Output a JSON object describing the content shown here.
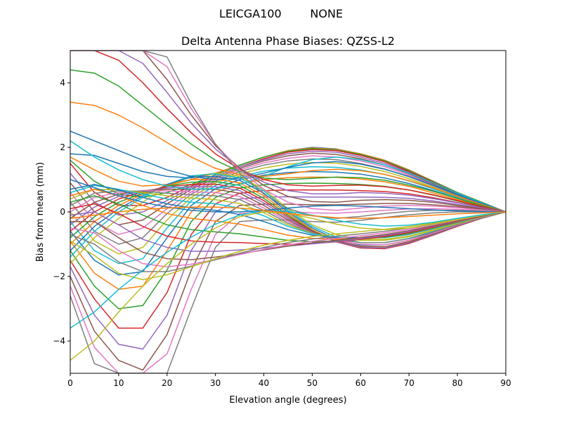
{
  "chart_data": {
    "type": "line",
    "suptitle": "LEICGA100        NONE",
    "title": "Delta Antenna Phase Biases: QZSS-L2",
    "xlabel": "Elevation angle (degrees)",
    "ylabel": "Bias from mean (mm)",
    "xlim": [
      0,
      90
    ],
    "ylim": [
      -5,
      5
    ],
    "xticks": [
      0,
      10,
      20,
      30,
      40,
      50,
      60,
      70,
      80,
      90
    ],
    "yticks": [
      -4,
      -2,
      0,
      2,
      4
    ],
    "grid": false,
    "legend": "none",
    "colors": [
      "#1f77b4",
      "#ff7f0e",
      "#2ca02c",
      "#d62728",
      "#9467bd",
      "#8c564b",
      "#e377c2",
      "#7f7f7f",
      "#bcbd22",
      "#17becf"
    ],
    "x": [
      0,
      5,
      10,
      15,
      20,
      25,
      30,
      35,
      40,
      45,
      50,
      55,
      60,
      65,
      70,
      75,
      80,
      85,
      90
    ],
    "series": [
      {
        "values": [
          1.8,
          1.75,
          1.5,
          1.25,
          1.1,
          1.05,
          1.2,
          1.45,
          1.7,
          1.9,
          2.0,
          1.95,
          1.8,
          1.6,
          1.3,
          0.95,
          0.6,
          0.3,
          0.0
        ]
      },
      {
        "values": [
          1.7,
          1.3,
          0.95,
          0.8,
          0.85,
          1.0,
          1.2,
          1.45,
          1.7,
          1.9,
          1.98,
          1.94,
          1.8,
          1.6,
          1.3,
          0.95,
          0.6,
          0.3,
          0.0
        ]
      },
      {
        "values": [
          1.6,
          0.95,
          0.55,
          0.45,
          0.6,
          0.85,
          1.15,
          1.45,
          1.7,
          1.88,
          1.96,
          1.92,
          1.78,
          1.58,
          1.28,
          0.94,
          0.6,
          0.3,
          0.0
        ]
      },
      {
        "values": [
          1.5,
          0.6,
          0.2,
          0.2,
          0.45,
          0.8,
          1.1,
          1.4,
          1.65,
          1.85,
          1.93,
          1.9,
          1.75,
          1.55,
          1.25,
          0.92,
          0.58,
          0.28,
          0.0
        ]
      },
      {
        "values": [
          1.2,
          0.3,
          -0.1,
          0.0,
          0.35,
          0.75,
          1.1,
          1.4,
          1.62,
          1.8,
          1.88,
          1.85,
          1.7,
          1.5,
          1.22,
          0.9,
          0.57,
          0.27,
          0.0
        ]
      },
      {
        "values": [
          0.9,
          0.0,
          -0.4,
          -0.25,
          0.25,
          0.7,
          1.05,
          1.35,
          1.58,
          1.74,
          1.82,
          1.78,
          1.65,
          1.45,
          1.18,
          0.87,
          0.55,
          0.26,
          0.0
        ]
      },
      {
        "values": [
          0.6,
          -0.3,
          -0.7,
          -0.5,
          0.1,
          0.62,
          1.0,
          1.3,
          1.52,
          1.66,
          1.74,
          1.7,
          1.58,
          1.4,
          1.14,
          0.84,
          0.53,
          0.25,
          0.0
        ]
      },
      {
        "values": [
          0.3,
          -0.6,
          -1.0,
          -0.8,
          -0.05,
          0.55,
          0.95,
          1.25,
          1.45,
          1.58,
          1.64,
          1.62,
          1.5,
          1.33,
          1.09,
          0.8,
          0.51,
          0.24,
          0.0
        ]
      },
      {
        "values": [
          0.0,
          -0.9,
          -1.3,
          -1.1,
          -0.25,
          0.45,
          0.9,
          1.18,
          1.36,
          1.48,
          1.53,
          1.51,
          1.41,
          1.25,
          1.03,
          0.76,
          0.48,
          0.23,
          0.0
        ]
      },
      {
        "values": [
          -0.3,
          -1.2,
          -1.6,
          -1.45,
          -0.5,
          0.35,
          0.82,
          1.1,
          1.26,
          1.36,
          1.4,
          1.38,
          1.3,
          1.16,
          0.96,
          0.71,
          0.45,
          0.22,
          0.0
        ]
      },
      {
        "values": [
          -0.6,
          -1.5,
          -1.95,
          -1.85,
          -0.8,
          0.2,
          0.72,
          1.0,
          1.14,
          1.22,
          1.25,
          1.23,
          1.17,
          1.05,
          0.88,
          0.66,
          0.42,
          0.2,
          0.0
        ]
      },
      {
        "values": [
          -0.9,
          -1.9,
          -2.4,
          -2.3,
          -1.2,
          0.0,
          0.6,
          0.88,
          1.0,
          1.06,
          1.08,
          1.07,
          1.02,
          0.93,
          0.79,
          0.59,
          0.38,
          0.18,
          0.0
        ]
      },
      {
        "values": [
          -1.2,
          -2.3,
          -3.0,
          -2.9,
          -1.8,
          -0.3,
          0.45,
          0.74,
          0.84,
          0.88,
          0.89,
          0.88,
          0.85,
          0.79,
          0.68,
          0.52,
          0.34,
          0.16,
          0.0
        ]
      },
      {
        "values": [
          -1.5,
          -2.7,
          -3.6,
          -3.6,
          -2.5,
          -0.7,
          0.25,
          0.58,
          0.66,
          0.68,
          0.68,
          0.68,
          0.66,
          0.63,
          0.56,
          0.44,
          0.29,
          0.14,
          0.0
        ]
      },
      {
        "values": [
          -1.7,
          -3.2,
          -4.1,
          -4.25,
          -3.2,
          -1.2,
          0.0,
          0.4,
          0.46,
          0.47,
          0.46,
          0.46,
          0.46,
          0.45,
          0.42,
          0.34,
          0.23,
          0.11,
          0.0
        ]
      },
      {
        "values": [
          -2.0,
          -3.7,
          -4.6,
          -4.9,
          -3.8,
          -1.8,
          -0.3,
          0.2,
          0.24,
          0.24,
          0.22,
          0.22,
          0.24,
          0.26,
          0.26,
          0.22,
          0.16,
          0.08,
          0.0
        ]
      },
      {
        "values": [
          -2.3,
          -4.2,
          -5.0,
          -5.0,
          -4.4,
          -2.4,
          -0.7,
          -0.05,
          0.0,
          0.0,
          -0.03,
          -0.04,
          0.0,
          0.05,
          0.09,
          0.1,
          0.08,
          0.04,
          0.0
        ]
      },
      {
        "values": [
          -2.6,
          -4.7,
          -5.0,
          -5.0,
          -5.0,
          -3.0,
          -1.1,
          -0.3,
          -0.25,
          -0.25,
          -0.3,
          -0.32,
          -0.26,
          -0.17,
          -0.09,
          -0.03,
          0.0,
          0.0,
          0.0
        ]
      },
      {
        "values": [
          -1.6,
          -0.8,
          -0.2,
          0.3,
          0.8,
          1.1,
          1.2,
          1.1,
          0.7,
          0.1,
          -0.4,
          -0.7,
          -0.85,
          -0.85,
          -0.75,
          -0.55,
          -0.35,
          -0.15,
          0.0
        ]
      },
      {
        "values": [
          -1.4,
          -0.6,
          0.0,
          0.45,
          0.85,
          1.12,
          1.18,
          1.05,
          0.65,
          0.05,
          -0.45,
          -0.78,
          -0.95,
          -0.95,
          -0.82,
          -0.6,
          -0.38,
          -0.17,
          0.0
        ]
      },
      {
        "values": [
          -1.2,
          -0.45,
          0.1,
          0.5,
          0.85,
          1.08,
          1.1,
          0.98,
          0.58,
          0.0,
          -0.5,
          -0.85,
          -1.02,
          -1.02,
          -0.88,
          -0.64,
          -0.4,
          -0.18,
          0.0
        ]
      },
      {
        "values": [
          -1.0,
          -0.3,
          0.2,
          0.55,
          0.82,
          1.0,
          1.02,
          0.9,
          0.5,
          -0.05,
          -0.55,
          -0.9,
          -1.08,
          -1.08,
          -0.92,
          -0.67,
          -0.42,
          -0.19,
          0.0
        ]
      },
      {
        "values": [
          -0.8,
          -0.15,
          0.3,
          0.58,
          0.8,
          0.92,
          0.94,
          0.82,
          0.42,
          -0.1,
          -0.58,
          -0.92,
          -1.1,
          -1.12,
          -0.96,
          -0.7,
          -0.44,
          -0.2,
          0.0
        ]
      },
      {
        "values": [
          -0.6,
          0.0,
          0.4,
          0.62,
          0.78,
          0.85,
          0.86,
          0.74,
          0.35,
          -0.15,
          -0.6,
          -0.93,
          -1.12,
          -1.14,
          -0.98,
          -0.72,
          -0.45,
          -0.2,
          0.0
        ]
      },
      {
        "values": [
          -0.4,
          0.15,
          0.48,
          0.65,
          0.74,
          0.78,
          0.78,
          0.66,
          0.28,
          -0.2,
          -0.62,
          -0.92,
          -1.1,
          -1.12,
          -0.96,
          -0.71,
          -0.44,
          -0.2,
          0.0
        ]
      },
      {
        "values": [
          -0.2,
          0.3,
          0.55,
          0.66,
          0.7,
          0.7,
          0.7,
          0.58,
          0.2,
          -0.25,
          -0.64,
          -0.9,
          -1.06,
          -1.08,
          -0.93,
          -0.69,
          -0.43,
          -0.19,
          0.0
        ]
      },
      {
        "values": [
          0.0,
          0.45,
          0.6,
          0.66,
          0.65,
          0.62,
          0.6,
          0.48,
          0.12,
          -0.3,
          -0.65,
          -0.88,
          -1.0,
          -1.02,
          -0.88,
          -0.66,
          -0.41,
          -0.18,
          0.0
        ]
      },
      {
        "values": [
          0.2,
          0.58,
          0.65,
          0.64,
          0.58,
          0.53,
          0.5,
          0.38,
          0.05,
          -0.35,
          -0.66,
          -0.85,
          -0.95,
          -0.95,
          -0.83,
          -0.62,
          -0.39,
          -0.17,
          0.0
        ]
      },
      {
        "values": [
          0.4,
          0.7,
          0.68,
          0.6,
          0.5,
          0.43,
          0.38,
          0.26,
          -0.03,
          -0.4,
          -0.67,
          -0.82,
          -0.88,
          -0.88,
          -0.77,
          -0.57,
          -0.36,
          -0.16,
          0.0
        ]
      },
      {
        "values": [
          0.6,
          0.82,
          0.7,
          0.55,
          0.4,
          0.3,
          0.25,
          0.12,
          -0.12,
          -0.45,
          -0.68,
          -0.78,
          -0.8,
          -0.8,
          -0.7,
          -0.52,
          -0.33,
          -0.15,
          0.0
        ]
      },
      {
        "values": [
          0.7,
          0.85,
          0.68,
          0.45,
          0.25,
          0.12,
          0.05,
          -0.08,
          -0.3,
          -0.55,
          -0.72,
          -0.8,
          -0.8,
          -0.78,
          -0.68,
          -0.5,
          -0.32,
          -0.14,
          0.0
        ]
      },
      {
        "values": [
          0.5,
          0.7,
          0.5,
          0.2,
          -0.05,
          -0.2,
          -0.28,
          -0.38,
          -0.55,
          -0.72,
          -0.82,
          -0.85,
          -0.82,
          -0.78,
          -0.67,
          -0.49,
          -0.31,
          -0.14,
          0.0
        ]
      },
      {
        "values": [
          0.3,
          0.5,
          0.25,
          -0.1,
          -0.4,
          -0.55,
          -0.62,
          -0.68,
          -0.78,
          -0.88,
          -0.92,
          -0.9,
          -0.84,
          -0.78,
          -0.66,
          -0.48,
          -0.3,
          -0.13,
          0.0
        ]
      },
      {
        "values": [
          0.1,
          0.25,
          -0.05,
          -0.45,
          -0.75,
          -0.9,
          -0.94,
          -0.95,
          -0.98,
          -1.0,
          -0.98,
          -0.93,
          -0.85,
          -0.76,
          -0.64,
          -0.47,
          -0.29,
          -0.13,
          0.0
        ]
      },
      {
        "values": [
          -0.1,
          0.0,
          -0.4,
          -0.85,
          -1.1,
          -1.22,
          -1.22,
          -1.18,
          -1.12,
          -1.06,
          -0.99,
          -0.92,
          -0.83,
          -0.73,
          -0.61,
          -0.45,
          -0.28,
          -0.12,
          0.0
        ]
      },
      {
        "values": [
          -0.3,
          -0.3,
          -0.8,
          -1.25,
          -1.45,
          -1.48,
          -1.4,
          -1.3,
          -1.18,
          -1.06,
          -0.96,
          -0.88,
          -0.79,
          -0.7,
          -0.58,
          -0.43,
          -0.27,
          -0.12,
          0.0
        ]
      },
      {
        "values": [
          -0.5,
          -0.65,
          -1.2,
          -1.6,
          -1.7,
          -1.62,
          -1.48,
          -1.32,
          -1.16,
          -1.02,
          -0.91,
          -0.82,
          -0.74,
          -0.65,
          -0.54,
          -0.4,
          -0.25,
          -0.11,
          0.0
        ]
      },
      {
        "values": [
          -0.7,
          -1.0,
          -1.55,
          -1.85,
          -1.85,
          -1.68,
          -1.48,
          -1.28,
          -1.1,
          -0.95,
          -0.84,
          -0.75,
          -0.68,
          -0.6,
          -0.5,
          -0.37,
          -0.23,
          -0.1,
          0.0
        ]
      },
      {
        "values": [
          -0.9,
          -1.35,
          -1.9,
          -2.1,
          -1.95,
          -1.7,
          -1.45,
          -1.22,
          -1.03,
          -0.88,
          -0.76,
          -0.68,
          -0.61,
          -0.54,
          -0.45,
          -0.34,
          -0.21,
          -0.09,
          0.0
        ]
      },
      {
        "values": [
          2.2,
          1.7,
          1.3,
          1.0,
          0.8,
          0.7,
          0.72,
          0.85,
          1.1,
          1.4,
          1.62,
          1.7,
          1.62,
          1.45,
          1.2,
          0.9,
          0.58,
          0.28,
          0.0
        ]
      },
      {
        "values": [
          2.5,
          2.2,
          1.9,
          1.6,
          1.3,
          1.1,
          1.0,
          1.05,
          1.2,
          1.38,
          1.52,
          1.56,
          1.48,
          1.32,
          1.1,
          0.83,
          0.54,
          0.26,
          0.0
        ]
      },
      {
        "values": [
          3.4,
          3.3,
          3.0,
          2.6,
          2.15,
          1.7,
          1.35,
          1.15,
          1.1,
          1.18,
          1.28,
          1.32,
          1.28,
          1.16,
          0.97,
          0.74,
          0.48,
          0.23,
          0.0
        ]
      },
      {
        "values": [
          4.4,
          4.3,
          3.9,
          3.3,
          2.7,
          2.1,
          1.6,
          1.25,
          1.05,
          1.0,
          1.04,
          1.08,
          1.06,
          0.98,
          0.83,
          0.64,
          0.42,
          0.2,
          0.0
        ]
      },
      {
        "values": [
          5.0,
          5.0,
          4.7,
          4.0,
          3.2,
          2.45,
          1.8,
          1.32,
          1.0,
          0.84,
          0.8,
          0.82,
          0.83,
          0.78,
          0.68,
          0.53,
          0.35,
          0.17,
          0.0
        ]
      },
      {
        "values": [
          5.0,
          5.0,
          5.0,
          4.6,
          3.7,
          2.75,
          1.95,
          1.35,
          0.92,
          0.66,
          0.56,
          0.56,
          0.6,
          0.58,
          0.52,
          0.41,
          0.28,
          0.13,
          0.0
        ]
      },
      {
        "values": [
          5.0,
          5.0,
          5.0,
          5.0,
          4.1,
          3.0,
          2.05,
          1.35,
          0.82,
          0.48,
          0.32,
          0.3,
          0.36,
          0.38,
          0.36,
          0.3,
          0.2,
          0.1,
          0.0
        ]
      },
      {
        "values": [
          5.0,
          5.0,
          5.0,
          5.0,
          4.5,
          3.2,
          2.1,
          1.3,
          0.7,
          0.3,
          0.1,
          0.05,
          0.12,
          0.18,
          0.2,
          0.18,
          0.13,
          0.06,
          0.0
        ]
      },
      {
        "values": [
          5.0,
          5.0,
          5.0,
          5.0,
          4.8,
          3.35,
          2.1,
          1.2,
          0.55,
          0.1,
          -0.12,
          -0.2,
          -0.14,
          -0.05,
          0.02,
          0.05,
          0.05,
          0.02,
          0.0
        ]
      },
      {
        "values": [
          -4.6,
          -4.0,
          -3.1,
          -2.3,
          -1.6,
          -1.0,
          -0.5,
          -0.15,
          0.0,
          -0.05,
          -0.2,
          -0.38,
          -0.5,
          -0.55,
          -0.5,
          -0.38,
          -0.24,
          -0.11,
          0.0
        ]
      },
      {
        "values": [
          -3.6,
          -3.1,
          -2.4,
          -1.8,
          -1.25,
          -0.78,
          -0.38,
          -0.1,
          0.05,
          0.02,
          -0.1,
          -0.26,
          -0.38,
          -0.44,
          -0.41,
          -0.32,
          -0.2,
          -0.09,
          0.0
        ]
      },
      {
        "values": [
          1.0,
          0.75,
          0.5,
          0.3,
          0.15,
          0.05,
          0.0,
          0.0,
          0.05,
          0.12,
          0.18,
          0.2,
          0.18,
          0.14,
          0.1,
          0.06,
          0.03,
          0.01,
          0.0
        ]
      },
      {
        "values": [
          -0.2,
          -0.1,
          0.0,
          0.08,
          0.12,
          0.15,
          0.15,
          0.12,
          0.05,
          -0.05,
          -0.12,
          -0.18,
          -0.2,
          -0.18,
          -0.14,
          -0.1,
          -0.06,
          -0.03,
          0.0
        ]
      }
    ]
  }
}
